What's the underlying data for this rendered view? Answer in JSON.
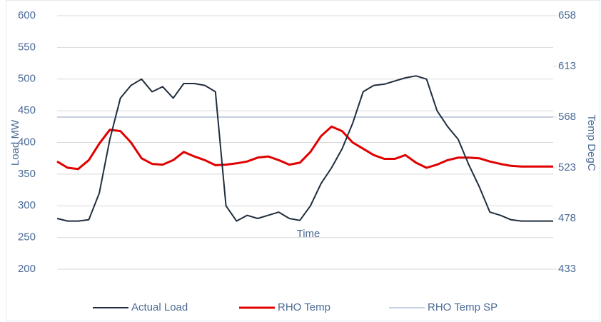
{
  "chart_data": {
    "type": "line",
    "x_label": "Time",
    "y_label": "Load MW",
    "y2_label": "Temp DegC",
    "categories": [
      null,
      null,
      null,
      null,
      null,
      null,
      null,
      null,
      null,
      null,
      null,
      null,
      null,
      null,
      null,
      null,
      null,
      null,
      null,
      null,
      null,
      null,
      null,
      null,
      null,
      null,
      null,
      null,
      null,
      null,
      null,
      null,
      null,
      null,
      null,
      null,
      null,
      null,
      null,
      null,
      null,
      null,
      null,
      null,
      null,
      null,
      null,
      null
    ],
    "ylim": [
      200,
      600
    ],
    "yticks": [
      200,
      250,
      300,
      350,
      400,
      450,
      500,
      550,
      600
    ],
    "y2lim": [
      433,
      658
    ],
    "y2ticks": [
      433,
      478,
      523,
      568,
      613,
      658
    ],
    "grid": true,
    "legend": "bottom",
    "series": [
      {
        "name": "Actual Load",
        "color": "#1f2d3d",
        "axis": "y",
        "values": [
          280,
          276,
          276,
          278,
          320,
          405,
          470,
          490,
          500,
          480,
          488,
          470,
          493,
          493,
          490,
          480,
          300,
          276,
          285,
          280,
          285,
          290,
          280,
          277,
          300,
          335,
          360,
          390,
          430,
          480,
          490,
          492,
          497,
          502,
          505,
          500,
          450,
          425,
          405,
          365,
          330,
          290,
          285,
          278,
          276,
          276,
          276,
          276
        ]
      },
      {
        "name": "RHO Temp",
        "color": "#e00000",
        "axis": "y2",
        "values": [
          528.6,
          523,
          521.9,
          529.8,
          544.4,
          556.8,
          555.6,
          545.5,
          531.4,
          526.4,
          525.8,
          529.8,
          537.1,
          533.1,
          529.8,
          525.3,
          525.8,
          526.9,
          528.6,
          532,
          533.1,
          529.8,
          525.8,
          527.5,
          537.1,
          551.1,
          559.6,
          555.6,
          545.5,
          539.9,
          534.3,
          530.9,
          530.9,
          534.3,
          527.5,
          523,
          525.8,
          529.8,
          532,
          532,
          531.4,
          528.6,
          526.4,
          524.7,
          524.1,
          524.1,
          524.1,
          524.1
        ]
      },
      {
        "name": "RHO Temp SP",
        "color": "#c5d0e0",
        "axis": "y2",
        "values": [
          568,
          568,
          568,
          568,
          568,
          568,
          568,
          568,
          568,
          568,
          568,
          568,
          568,
          568,
          568,
          568,
          568,
          568,
          568,
          568,
          568,
          568,
          568,
          568,
          568,
          568,
          568,
          568,
          568,
          568,
          568,
          568,
          568,
          568,
          568,
          568,
          568,
          568,
          568,
          568,
          568,
          568,
          568,
          568,
          568,
          568,
          568,
          568
        ]
      }
    ]
  }
}
